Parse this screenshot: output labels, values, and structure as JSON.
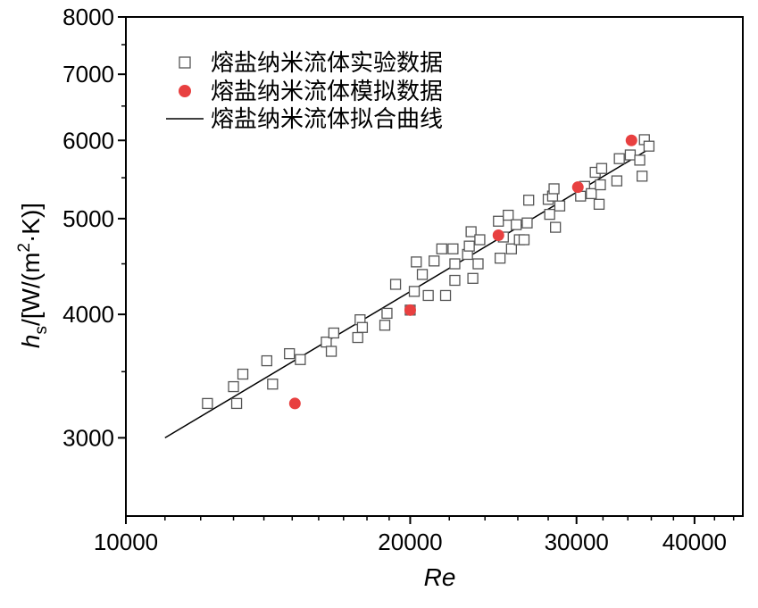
{
  "chart_data": {
    "type": "scatter",
    "x_scale": "log",
    "y_scale": "log",
    "xlim": [
      10000,
      45000
    ],
    "ylim": [
      2500,
      8000
    ],
    "x_ticks": [
      10000,
      20000,
      30000,
      40000
    ],
    "x_tick_labels": [
      "10000",
      "20000",
      "30000",
      "40000"
    ],
    "y_ticks": [
      3000,
      4000,
      5000,
      6000,
      7000,
      8000
    ],
    "y_tick_labels": [
      "3000",
      "4000",
      "5000",
      "6000",
      "7000",
      "8000"
    ],
    "xlabel": "Re",
    "ylabel_main": "h",
    "ylabel_sub": "s",
    "ylabel_rest": "/[W/(m",
    "ylabel_sup": "2",
    "ylabel_tail": "·K)]",
    "legend_position": "top-left",
    "colors": {
      "experiment": "#555555",
      "simulation": "#e84040",
      "fit": "#000000"
    },
    "series": [
      {
        "name": "熔盐纳米流体实验数据",
        "kind": "open-square",
        "points": [
          [
            12200,
            3250
          ],
          [
            13000,
            3380
          ],
          [
            13100,
            3250
          ],
          [
            13300,
            3480
          ],
          [
            14100,
            3590
          ],
          [
            14300,
            3400
          ],
          [
            14900,
            3650
          ],
          [
            15300,
            3600
          ],
          [
            16300,
            3750
          ],
          [
            16600,
            3830
          ],
          [
            16500,
            3670
          ],
          [
            17600,
            3790
          ],
          [
            17700,
            3950
          ],
          [
            17800,
            3880
          ],
          [
            18800,
            3900
          ],
          [
            18900,
            4010
          ],
          [
            19300,
            4290
          ],
          [
            20000,
            4040
          ],
          [
            20200,
            4220
          ],
          [
            20300,
            4520
          ],
          [
            20600,
            4390
          ],
          [
            20900,
            4180
          ],
          [
            21200,
            4530
          ],
          [
            21600,
            4660
          ],
          [
            21800,
            4180
          ],
          [
            22200,
            4660
          ],
          [
            22300,
            4500
          ],
          [
            22300,
            4330
          ],
          [
            23000,
            4600
          ],
          [
            23100,
            4690
          ],
          [
            23200,
            4850
          ],
          [
            23300,
            4350
          ],
          [
            23600,
            4500
          ],
          [
            23700,
            4760
          ],
          [
            24800,
            4970
          ],
          [
            24900,
            4560
          ],
          [
            25100,
            4790
          ],
          [
            25400,
            5040
          ],
          [
            25600,
            4660
          ],
          [
            25900,
            4930
          ],
          [
            26100,
            4760
          ],
          [
            26400,
            4760
          ],
          [
            26600,
            4950
          ],
          [
            26700,
            5220
          ],
          [
            28000,
            5230
          ],
          [
            28100,
            5050
          ],
          [
            28300,
            5270
          ],
          [
            28400,
            5360
          ],
          [
            28500,
            4900
          ],
          [
            28800,
            5150
          ],
          [
            30300,
            5270
          ],
          [
            30600,
            5390
          ],
          [
            31100,
            5300
          ],
          [
            31400,
            5570
          ],
          [
            31700,
            5170
          ],
          [
            31800,
            5410
          ],
          [
            31900,
            5620
          ],
          [
            33100,
            5460
          ],
          [
            33300,
            5750
          ],
          [
            34200,
            5800
          ],
          [
            35000,
            5730
          ],
          [
            35200,
            5520
          ],
          [
            35400,
            6010
          ],
          [
            35800,
            5920
          ]
        ]
      },
      {
        "name": "熔盐纳米流体模拟数据",
        "kind": "filled-circle",
        "points": [
          [
            15100,
            3250
          ],
          [
            20000,
            4040
          ],
          [
            24800,
            4810
          ],
          [
            30100,
            5380
          ],
          [
            34300,
            6000
          ]
        ]
      },
      {
        "name": "熔盐纳米流体拟合曲线",
        "kind": "line",
        "points": [
          [
            11000,
            3000
          ],
          [
            35800,
            5880
          ]
        ]
      }
    ]
  }
}
